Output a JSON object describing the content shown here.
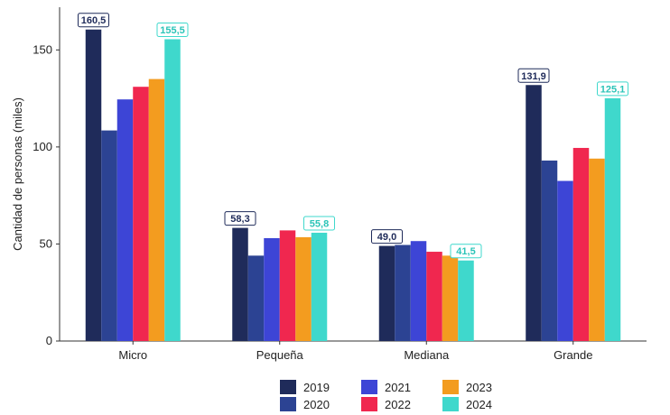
{
  "chart_data": {
    "type": "bar",
    "categories": [
      "Micro",
      "Pequeña",
      "Mediana",
      "Grande"
    ],
    "series": [
      {
        "name": "2019",
        "color": "#1f2b5a",
        "values": [
          160.5,
          58.3,
          49.0,
          131.9
        ]
      },
      {
        "name": "2020",
        "color": "#2c4393",
        "values": [
          108.5,
          44.0,
          49.5,
          93.0
        ]
      },
      {
        "name": "2021",
        "color": "#3d45d6",
        "values": [
          124.5,
          53.0,
          51.5,
          82.5
        ]
      },
      {
        "name": "2022",
        "color": "#f0274f",
        "values": [
          131.0,
          57.0,
          46.0,
          99.5
        ]
      },
      {
        "name": "2023",
        "color": "#f39c1f",
        "values": [
          135.0,
          53.5,
          44.0,
          94.0
        ]
      },
      {
        "name": "2024",
        "color": "#3fd8cc",
        "values": [
          155.5,
          55.8,
          41.5,
          125.1
        ]
      }
    ],
    "data_labels": [
      {
        "series": "2019",
        "category": "Micro",
        "text": "160,5"
      },
      {
        "series": "2024",
        "category": "Micro",
        "text": "155,5"
      },
      {
        "series": "2019",
        "category": "Pequeña",
        "text": "58,3"
      },
      {
        "series": "2024",
        "category": "Pequeña",
        "text": "55,8"
      },
      {
        "series": "2019",
        "category": "Mediana",
        "text": "49,0"
      },
      {
        "series": "2024",
        "category": "Mediana",
        "text": "41,5"
      },
      {
        "series": "2019",
        "category": "Grande",
        "text": "131,9"
      },
      {
        "series": "2024",
        "category": "Grande",
        "text": "125,1"
      }
    ],
    "ylabel": "Cantidad de personas (miles)",
    "xlabel": "",
    "ylim": [
      0,
      172
    ],
    "yticks": [
      0,
      50,
      100,
      150
    ],
    "grid": false,
    "legend_position": "bottom"
  }
}
